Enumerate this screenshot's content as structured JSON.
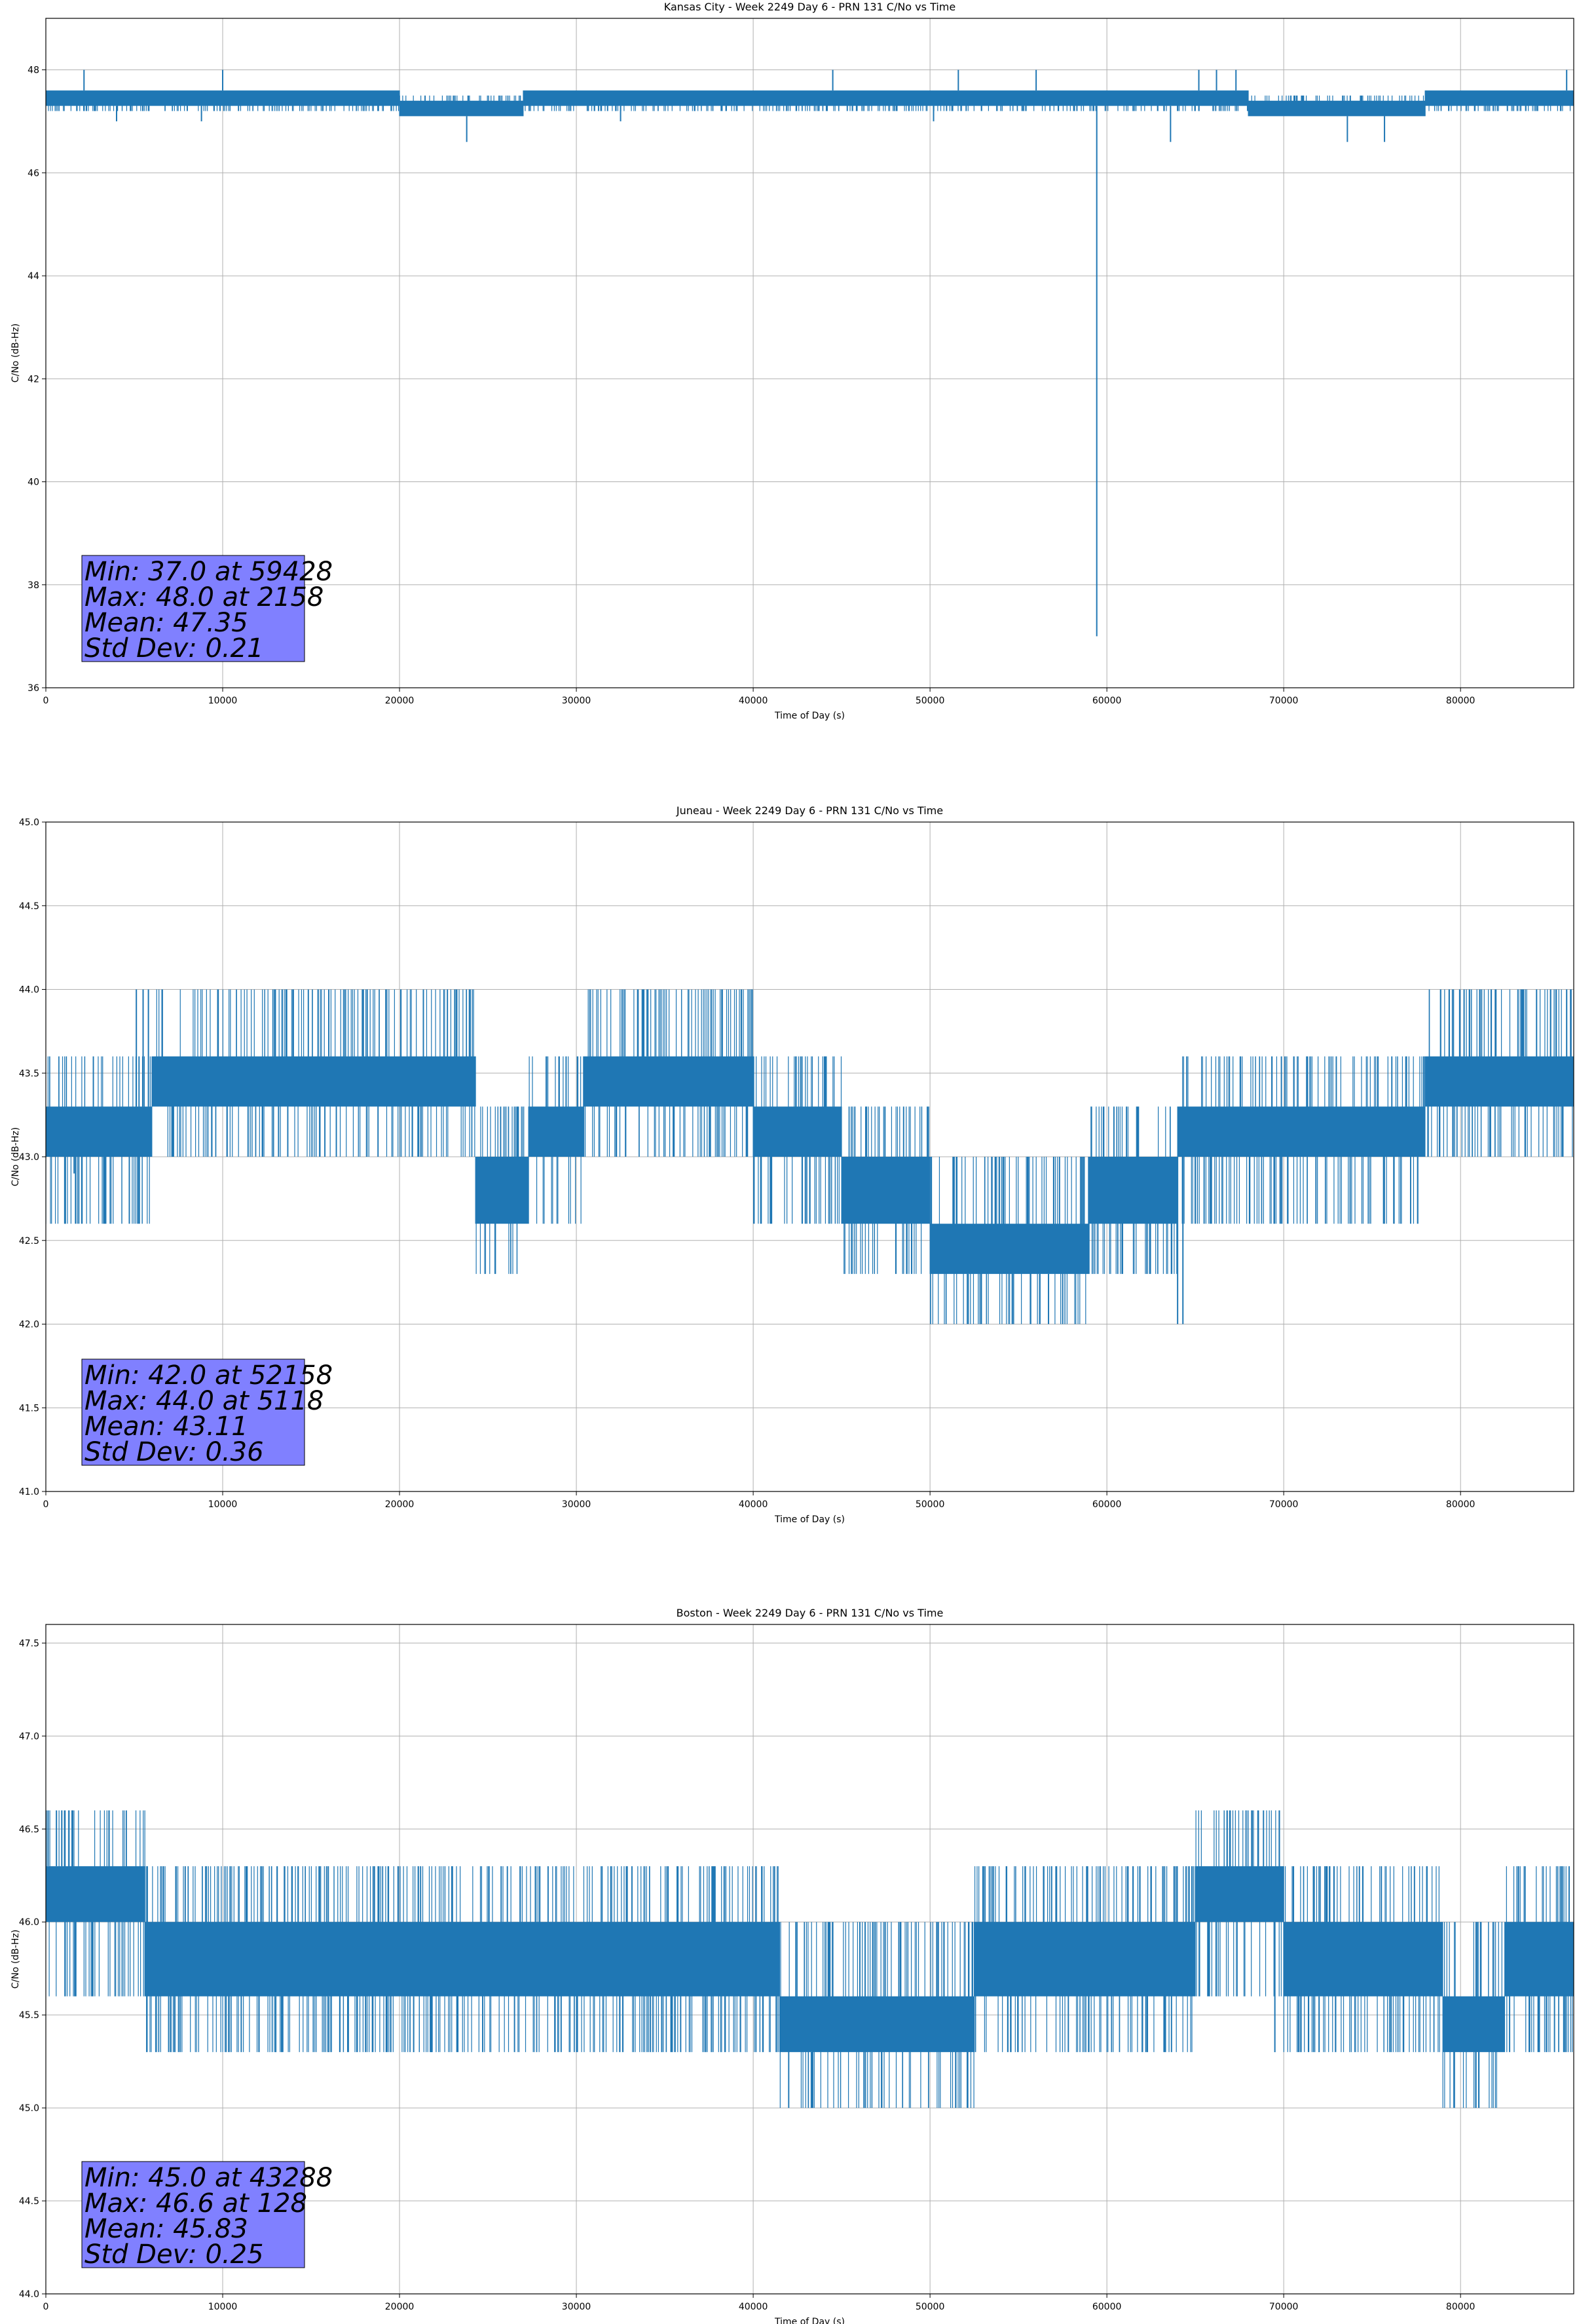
{
  "colors": {
    "series": "#1f77b4",
    "stats_box": "#8080ff",
    "grid": "#b0b0b0",
    "axes": "#000000"
  },
  "chart_data": [
    {
      "type": "line",
      "title": "Kansas City - Week 2249 Day 6 - PRN 131 C/No vs Time",
      "xlabel": "Time of Day (s)",
      "ylabel": "C/No (dB-Hz)",
      "xlim": [
        0,
        86400
      ],
      "ylim": [
        36,
        49
      ],
      "grid": true,
      "xticks": [
        0,
        10000,
        20000,
        30000,
        40000,
        50000,
        60000,
        70000,
        80000
      ],
      "xtick_labels": [
        "0",
        "10000",
        "20000",
        "30000",
        "40000",
        "50000",
        "60000",
        "70000",
        "80000"
      ],
      "yticks": [
        36,
        38,
        40,
        42,
        44,
        46,
        48
      ],
      "ytick_labels": [
        "36",
        "38",
        "40",
        "42",
        "44",
        "46",
        "48"
      ],
      "band": {
        "low": 47.2,
        "high": 47.6,
        "levels": [
          47.2,
          47.3,
          47.4,
          47.5,
          47.6
        ]
      },
      "segments": [
        {
          "x0": 0,
          "x1": 20000,
          "low": 47.3,
          "high": 47.6
        },
        {
          "x0": 20000,
          "x1": 27000,
          "low": 47.1,
          "high": 47.4
        },
        {
          "x0": 27000,
          "x1": 68000,
          "low": 47.3,
          "high": 47.6
        },
        {
          "x0": 68000,
          "x1": 78000,
          "low": 47.1,
          "high": 47.4
        },
        {
          "x0": 78000,
          "x1": 86400,
          "low": 47.3,
          "high": 47.6
        }
      ],
      "spikes": [
        {
          "x": 2158,
          "y": 48.0
        },
        {
          "x": 10000,
          "y": 48.0
        },
        {
          "x": 44500,
          "y": 48.0
        },
        {
          "x": 51600,
          "y": 48.0
        },
        {
          "x": 56000,
          "y": 48.0
        },
        {
          "x": 65200,
          "y": 48.0
        },
        {
          "x": 66200,
          "y": 48.0
        },
        {
          "x": 67300,
          "y": 48.0
        },
        {
          "x": 86000,
          "y": 48.0
        },
        {
          "x": 23800,
          "y": 46.6
        },
        {
          "x": 63600,
          "y": 46.6
        },
        {
          "x": 73600,
          "y": 46.6
        },
        {
          "x": 75700,
          "y": 46.6
        },
        {
          "x": 59428,
          "y": 37.0
        },
        {
          "x": 4000,
          "y": 47.0
        },
        {
          "x": 8800,
          "y": 47.0
        },
        {
          "x": 32500,
          "y": 47.0
        },
        {
          "x": 50200,
          "y": 47.0
        }
      ],
      "stats": {
        "lines": [
          "Min: 37.0 at 59428",
          "Max: 48.0 at 2158",
          "Mean: 47.35",
          "Std Dev: 0.21"
        ]
      }
    },
    {
      "type": "line",
      "title": "Juneau - Week 2249 Day 6 - PRN 131 C/No vs Time",
      "xlabel": "Time of Day (s)",
      "ylabel": "C/No (dB-Hz)",
      "xlim": [
        0,
        86400
      ],
      "ylim": [
        41.0,
        45.0
      ],
      "grid": true,
      "xticks": [
        0,
        10000,
        20000,
        30000,
        40000,
        50000,
        60000,
        70000,
        80000
      ],
      "xtick_labels": [
        "0",
        "10000",
        "20000",
        "30000",
        "40000",
        "50000",
        "60000",
        "70000",
        "80000"
      ],
      "yticks": [
        41.0,
        41.5,
        42.0,
        42.5,
        43.0,
        43.5,
        44.0,
        44.5,
        45.0
      ],
      "ytick_labels": [
        "41.0",
        "41.5",
        "42.0",
        "42.5",
        "43.0",
        "43.5",
        "44.0",
        "44.5",
        "45.0"
      ],
      "band": {
        "levels": [
          42.0,
          42.3,
          42.6,
          43.0,
          43.3,
          43.6,
          44.0
        ]
      },
      "segments": [
        {
          "x0": 0,
          "x1": 6000,
          "low": 43.0,
          "high": 43.3
        },
        {
          "x0": 6000,
          "x1": 24300,
          "low": 43.3,
          "high": 43.6
        },
        {
          "x0": 24300,
          "x1": 27300,
          "low": 42.6,
          "high": 43.0
        },
        {
          "x0": 27300,
          "x1": 30400,
          "low": 43.0,
          "high": 43.3
        },
        {
          "x0": 30400,
          "x1": 40000,
          "low": 43.3,
          "high": 43.6
        },
        {
          "x0": 40000,
          "x1": 45000,
          "low": 43.0,
          "high": 43.3
        },
        {
          "x0": 45000,
          "x1": 50000,
          "low": 42.6,
          "high": 43.0
        },
        {
          "x0": 50000,
          "x1": 59000,
          "low": 42.3,
          "high": 42.6
        },
        {
          "x0": 59000,
          "x1": 64000,
          "low": 42.6,
          "high": 43.0
        },
        {
          "x0": 64000,
          "x1": 69000,
          "low": 43.0,
          "high": 43.3
        },
        {
          "x0": 69000,
          "x1": 78000,
          "low": 43.0,
          "high": 43.3
        },
        {
          "x0": 78000,
          "x1": 86400,
          "low": 43.3,
          "high": 43.6
        }
      ],
      "spikes": [
        {
          "x": 5118,
          "y": 44.0
        },
        {
          "x": 5500,
          "y": 44.0
        },
        {
          "x": 5800,
          "y": 44.0
        },
        {
          "x": 16000,
          "y": 44.0
        },
        {
          "x": 17900,
          "y": 44.0
        },
        {
          "x": 34000,
          "y": 44.0
        },
        {
          "x": 80200,
          "y": 44.0
        },
        {
          "x": 82000,
          "y": 44.0
        },
        {
          "x": 83500,
          "y": 44.0
        },
        {
          "x": 84300,
          "y": 44.0
        },
        {
          "x": 85400,
          "y": 44.0
        },
        {
          "x": 86000,
          "y": 44.0
        },
        {
          "x": 52158,
          "y": 42.0
        },
        {
          "x": 56200,
          "y": 42.0
        },
        {
          "x": 56700,
          "y": 42.0
        },
        {
          "x": 64000,
          "y": 42.0
        },
        {
          "x": 64300,
          "y": 42.0
        },
        {
          "x": 1100,
          "y": 42.6
        },
        {
          "x": 1600,
          "y": 42.9
        }
      ],
      "stats": {
        "lines": [
          "Min: 42.0 at 52158",
          "Max: 44.0 at 5118",
          "Mean: 43.11",
          "Std Dev: 0.36"
        ]
      }
    },
    {
      "type": "line",
      "title": "Boston - Week 2249 Day 6 - PRN 131 C/No vs Time",
      "xlabel": "Time of Day (s)",
      "ylabel": "C/No (dB-Hz)",
      "xlim": [
        0,
        86400
      ],
      "ylim": [
        44.0,
        47.6
      ],
      "grid": true,
      "xticks": [
        0,
        10000,
        20000,
        30000,
        40000,
        50000,
        60000,
        70000,
        80000
      ],
      "xtick_labels": [
        "0",
        "10000",
        "20000",
        "30000",
        "40000",
        "50000",
        "60000",
        "70000",
        "80000"
      ],
      "yticks": [
        44.0,
        44.5,
        45.0,
        45.5,
        46.0,
        46.5,
        47.0,
        47.5
      ],
      "ytick_labels": [
        "44.0",
        "44.5",
        "45.0",
        "45.5",
        "46.0",
        "46.5",
        "47.0",
        "47.5"
      ],
      "band": {
        "levels": [
          45.0,
          45.3,
          45.6,
          46.0,
          46.3,
          46.6
        ]
      },
      "segments": [
        {
          "x0": 0,
          "x1": 5600,
          "low": 46.0,
          "high": 46.3
        },
        {
          "x0": 5600,
          "x1": 41500,
          "low": 45.6,
          "high": 46.0
        },
        {
          "x0": 41500,
          "x1": 52500,
          "low": 45.3,
          "high": 45.6
        },
        {
          "x0": 52500,
          "x1": 55000,
          "low": 45.6,
          "high": 46.0
        },
        {
          "x0": 55000,
          "x1": 65000,
          "low": 45.6,
          "high": 46.0
        },
        {
          "x0": 65000,
          "x1": 70000,
          "low": 46.0,
          "high": 46.3
        },
        {
          "x0": 70000,
          "x1": 79000,
          "low": 45.6,
          "high": 46.0
        },
        {
          "x0": 79000,
          "x1": 82500,
          "low": 45.3,
          "high": 45.6
        },
        {
          "x0": 82500,
          "x1": 86400,
          "low": 45.6,
          "high": 46.0
        }
      ],
      "spikes": [
        {
          "x": 128,
          "y": 46.6
        },
        {
          "x": 600,
          "y": 46.6
        },
        {
          "x": 900,
          "y": 46.6
        },
        {
          "x": 1500,
          "y": 46.6
        },
        {
          "x": 43288,
          "y": 45.0
        },
        {
          "x": 13000,
          "y": 45.3
        },
        {
          "x": 16000,
          "y": 45.3
        },
        {
          "x": 20800,
          "y": 45.3
        },
        {
          "x": 21800,
          "y": 45.3
        },
        {
          "x": 69500,
          "y": 45.3
        },
        {
          "x": 72000,
          "y": 45.3
        },
        {
          "x": 85200,
          "y": 45.6
        }
      ],
      "stats": {
        "lines": [
          "Min: 45.0 at 43288",
          "Max: 46.6 at 128",
          "Mean: 45.83",
          "Std Dev: 0.25"
        ]
      }
    }
  ]
}
